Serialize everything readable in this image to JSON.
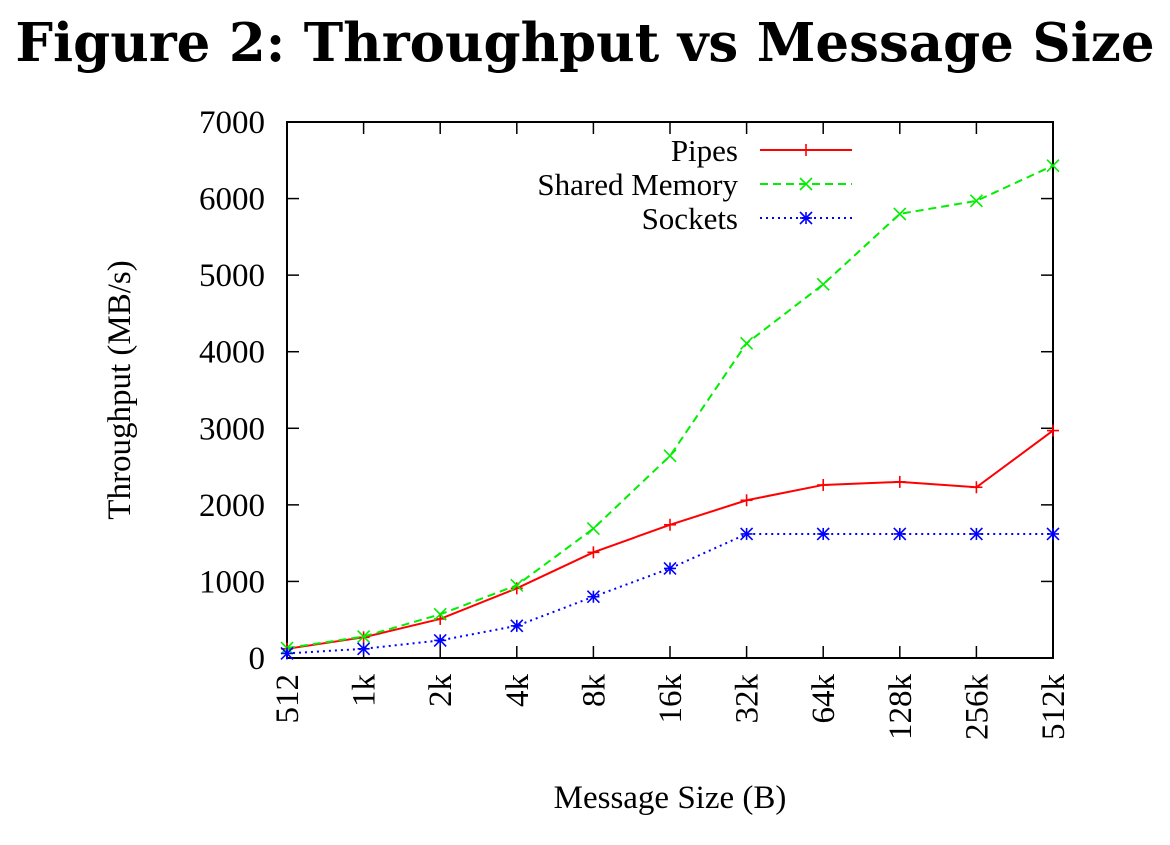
{
  "figure_title": "Figure 2: Throughput vs Message Size",
  "chart_data": {
    "type": "line",
    "title": "Figure 2: Throughput vs Message Size",
    "xlabel": "Message Size (B)",
    "ylabel": "Throughput (MB/s)",
    "categories": [
      "512",
      "1k",
      "2k",
      "4k",
      "8k",
      "16k",
      "32k",
      "64k",
      "128k",
      "256k",
      "512k"
    ],
    "ylim": [
      0,
      7000
    ],
    "yticks": [
      0,
      1000,
      2000,
      3000,
      4000,
      5000,
      6000,
      7000
    ],
    "grid": false,
    "legend_position": "top-right",
    "series": [
      {
        "name": "Pipes",
        "color": "#ff0000",
        "line_style": "solid",
        "marker": "plus",
        "values": [
          120,
          270,
          510,
          910,
          1380,
          1740,
          2060,
          2260,
          2300,
          2230,
          2970
        ]
      },
      {
        "name": "Shared Memory",
        "color": "#00ee00",
        "line_style": "dashed",
        "marker": "x",
        "values": [
          130,
          280,
          570,
          950,
          1690,
          2640,
          4110,
          4880,
          5800,
          5970,
          6430
        ]
      },
      {
        "name": "Sockets",
        "color": "#0000ff",
        "line_style": "dotted",
        "marker": "asterisk",
        "values": [
          60,
          120,
          230,
          420,
          800,
          1170,
          1620,
          1620,
          1620,
          1620,
          1620
        ]
      }
    ]
  }
}
